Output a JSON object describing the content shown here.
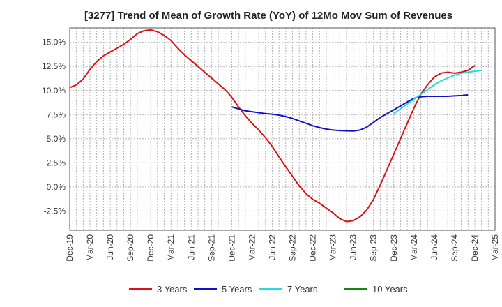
{
  "chart_data": {
    "type": "line",
    "title": "[3277]  Trend of Mean of Growth Rate (YoY) of 12Mo Mov Sum of Revenues",
    "xlabel": "",
    "ylabel": "",
    "ylim": [
      -4.5,
      16.5
    ],
    "yticks": [
      -2.5,
      0.0,
      2.5,
      5.0,
      7.5,
      10.0,
      12.5,
      15.0
    ],
    "ytick_labels": [
      "-2.5%",
      "0.0%",
      "2.5%",
      "5.0%",
      "7.5%",
      "10.0%",
      "12.5%",
      "15.0%"
    ],
    "x_start": "Dec-19",
    "xtick_labels": [
      "Dec-19",
      "Mar-20",
      "Jun-20",
      "Sep-20",
      "Dec-20",
      "Mar-21",
      "Jun-21",
      "Sep-21",
      "Dec-21",
      "Mar-22",
      "Jun-22",
      "Sep-22",
      "Dec-22",
      "Mar-23",
      "Jun-23",
      "Sep-23",
      "Dec-23",
      "Mar-24",
      "Jun-24",
      "Sep-24",
      "Dec-24",
      "Mar-25"
    ],
    "grid": true,
    "legend_position": "bottom",
    "series": [
      {
        "name": "3 Years",
        "color": "#dd1111",
        "start_month_index": 0,
        "values": [
          10.3,
          10.6,
          11.2,
          12.2,
          13.0,
          13.6,
          14.0,
          14.4,
          14.8,
          15.3,
          15.9,
          16.2,
          16.3,
          16.1,
          15.7,
          15.2,
          14.4,
          13.7,
          13.1,
          12.5,
          11.9,
          11.3,
          10.7,
          10.1,
          9.3,
          8.3,
          7.4,
          6.6,
          5.9,
          5.1,
          4.2,
          3.1,
          2.1,
          1.1,
          0.1,
          -0.7,
          -1.3,
          -1.7,
          -2.2,
          -2.7,
          -3.3,
          -3.6,
          -3.5,
          -3.1,
          -2.4,
          -1.3,
          0.2,
          1.8,
          3.4,
          5.0,
          6.6,
          8.2,
          9.6,
          10.6,
          11.4,
          11.8,
          11.9,
          11.8,
          11.9,
          12.1,
          12.6
        ]
      },
      {
        "name": "5 Years",
        "color": "#1111cc",
        "start_month_index": 24,
        "values": [
          8.3,
          8.1,
          7.9,
          7.8,
          7.7,
          7.6,
          7.55,
          7.45,
          7.3,
          7.1,
          6.85,
          6.6,
          6.35,
          6.15,
          6.0,
          5.9,
          5.85,
          5.82,
          5.8,
          5.9,
          6.2,
          6.7,
          7.2,
          7.6,
          8.0,
          8.4,
          8.8,
          9.2,
          9.35,
          9.4,
          9.4,
          9.4,
          9.4,
          9.45,
          9.48,
          9.55
        ]
      },
      {
        "name": "7 Years",
        "color": "#22dddd",
        "start_month_index": 48,
        "values": [
          7.6,
          8.1,
          8.6,
          9.1,
          9.6,
          10.1,
          10.6,
          11.0,
          11.3,
          11.6,
          11.8,
          11.9,
          12.0,
          12.1
        ]
      },
      {
        "name": "10 Years",
        "color": "#118811",
        "start_month_index": 0,
        "values": []
      }
    ]
  }
}
